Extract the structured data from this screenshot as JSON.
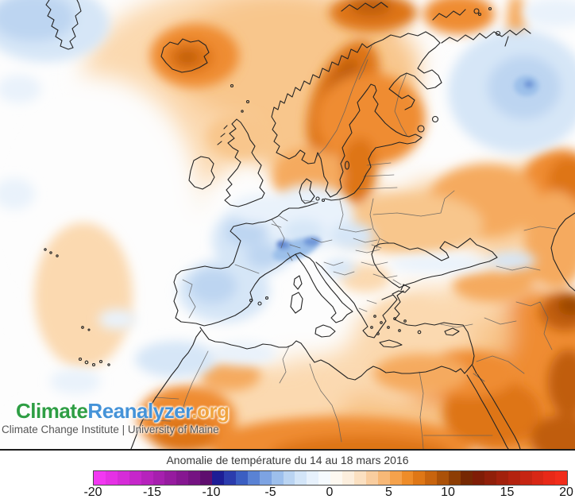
{
  "brand": {
    "wordmark": {
      "part1": "Climate",
      "part2": "Reanalyzer",
      "part3": ".org"
    },
    "colors": {
      "part1": "#2e9e44",
      "part2": "#4593d8",
      "part3": "#f0a43e"
    },
    "subtitle": "Climate Change Institute | University of Maine"
  },
  "caption": {
    "title": "Anomalie de température du 14 au 18 mars 2016"
  },
  "colorbar": {
    "min": -20,
    "max": 20,
    "ticks": [
      -20,
      -15,
      -10,
      -5,
      0,
      5,
      10,
      15,
      20
    ],
    "colors": [
      "#f238f2",
      "#e531e5",
      "#d62cd8",
      "#c627ca",
      "#b623bc",
      "#a61fae",
      "#961b9f",
      "#861791",
      "#751382",
      "#5e0e6e",
      "#1d1d95",
      "#2b3cad",
      "#3b5ec2",
      "#5a82d4",
      "#7da3e2",
      "#9dbfec",
      "#bad4f2",
      "#d3e5f8",
      "#e7f1fc",
      "#f5fafe",
      "#fdf8f0",
      "#fceedd",
      "#fbe0c1",
      "#f9cd9f",
      "#f7b877",
      "#f5a24c",
      "#ee8c29",
      "#df7716",
      "#c8640e",
      "#ab5108",
      "#8d3d04",
      "#762803",
      "#7f1d06",
      "#901f09",
      "#a2210c",
      "#b4230f",
      "#c62512",
      "#d82715",
      "#e82918",
      "#f22d1b"
    ]
  },
  "map": {
    "palette": {
      "sea_white": "#fdfdfd",
      "warm_pale": "#fbd9b0",
      "warm_light": "#f8c68c",
      "warm_mid": "#f5aa5e",
      "warm_strong": "#ef8c33",
      "warm_deep": "#de7418",
      "warm_brown": "#c05d0e",
      "warm_dark": "#9c4605",
      "cool_faint": "#e9f2fb",
      "cool_pale": "#d6e6f7",
      "cool_light": "#bdd5f1",
      "cool_mid": "#9cc0ea",
      "cool_deep": "#7097d8",
      "cool_navy": "#4668c2",
      "white": "#fdfdfd",
      "coast": "#242424",
      "border": "#5e5e5e"
    }
  }
}
